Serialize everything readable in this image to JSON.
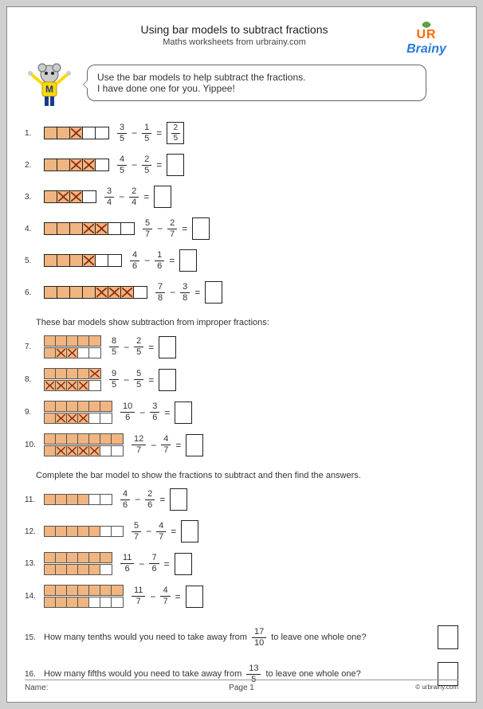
{
  "header": {
    "title": "Using bar models to subtract fractions",
    "subtitle": "Maths worksheets from urbrainy.com",
    "logo_top": "UR",
    "logo_bottom": "Brainy"
  },
  "bubble": {
    "line1": "Use the bar models to help subtract the fractions.",
    "line2": "I have done one for you. Yippee!"
  },
  "colors": {
    "fill": "#f0b580",
    "cross": "#8b2a0f",
    "border": "#222222"
  },
  "section2_text": "These bar models show subtraction from improper fractions:",
  "section3_text": "Complete the bar model to show the fractions to subtract and then find the answers.",
  "problems": [
    {
      "n": "1.",
      "bars": [
        [
          {
            "f": 1
          },
          {
            "f": 1
          },
          {
            "f": 1,
            "x": 1
          },
          {},
          {}
        ]
      ],
      "a": "3",
      "ad": "5",
      "b": "1",
      "bd": "5",
      "ans_n": "2",
      "ans_d": "5"
    },
    {
      "n": "2.",
      "bars": [
        [
          {
            "f": 1
          },
          {
            "f": 1
          },
          {
            "f": 1,
            "x": 1
          },
          {
            "f": 1,
            "x": 1
          },
          {}
        ]
      ],
      "a": "4",
      "ad": "5",
      "b": "2",
      "bd": "5"
    },
    {
      "n": "3.",
      "bars": [
        [
          {
            "f": 1
          },
          {
            "f": 1,
            "x": 1
          },
          {
            "f": 1,
            "x": 1
          },
          {}
        ]
      ],
      "a": "3",
      "ad": "4",
      "b": "2",
      "bd": "4"
    },
    {
      "n": "4.",
      "bars": [
        [
          {
            "f": 1
          },
          {
            "f": 1
          },
          {
            "f": 1
          },
          {
            "f": 1,
            "x": 1
          },
          {
            "f": 1,
            "x": 1
          },
          {},
          {}
        ]
      ],
      "a": "5",
      "ad": "7",
      "b": "2",
      "bd": "7"
    },
    {
      "n": "5.",
      "bars": [
        [
          {
            "f": 1
          },
          {
            "f": 1
          },
          {
            "f": 1
          },
          {
            "f": 1,
            "x": 1
          },
          {},
          {}
        ]
      ],
      "a": "4",
      "ad": "6",
      "b": "1",
      "bd": "6"
    },
    {
      "n": "6.",
      "bars": [
        [
          {
            "f": 1
          },
          {
            "f": 1
          },
          {
            "f": 1
          },
          {
            "f": 1
          },
          {
            "f": 1,
            "x": 1
          },
          {
            "f": 1,
            "x": 1
          },
          {
            "f": 1,
            "x": 1
          },
          {}
        ]
      ],
      "a": "7",
      "ad": "8",
      "b": "3",
      "bd": "8"
    }
  ],
  "improper": [
    {
      "n": "7.",
      "bars": [
        [
          {
            "f": 1
          },
          {
            "f": 1
          },
          {
            "f": 1
          },
          {
            "f": 1
          },
          {
            "f": 1
          }
        ],
        [
          {
            "f": 1
          },
          {
            "f": 1,
            "x": 1
          },
          {
            "f": 1,
            "x": 1
          },
          {},
          {}
        ]
      ],
      "a": "8",
      "ad": "5",
      "b": "2",
      "bd": "5"
    },
    {
      "n": "8.",
      "bars": [
        [
          {
            "f": 1
          },
          {
            "f": 1
          },
          {
            "f": 1
          },
          {
            "f": 1
          },
          {
            "f": 1,
            "x": 1
          }
        ],
        [
          {
            "f": 1,
            "x": 1
          },
          {
            "f": 1,
            "x": 1
          },
          {
            "f": 1,
            "x": 1
          },
          {
            "f": 1,
            "x": 1
          },
          {}
        ]
      ],
      "a": "9",
      "ad": "5",
      "b": "5",
      "bd": "5"
    },
    {
      "n": "9.",
      "bars": [
        [
          {
            "f": 1
          },
          {
            "f": 1
          },
          {
            "f": 1
          },
          {
            "f": 1
          },
          {
            "f": 1
          },
          {
            "f": 1
          }
        ],
        [
          {
            "f": 1
          },
          {
            "f": 1,
            "x": 1
          },
          {
            "f": 1,
            "x": 1
          },
          {
            "f": 1,
            "x": 1
          },
          {},
          {}
        ]
      ],
      "a": "10",
      "ad": "6",
      "b": "3",
      "bd": "6"
    },
    {
      "n": "10.",
      "bars": [
        [
          {
            "f": 1
          },
          {
            "f": 1
          },
          {
            "f": 1
          },
          {
            "f": 1
          },
          {
            "f": 1
          },
          {
            "f": 1
          },
          {
            "f": 1
          }
        ],
        [
          {
            "f": 1
          },
          {
            "f": 1,
            "x": 1
          },
          {
            "f": 1,
            "x": 1
          },
          {
            "f": 1,
            "x": 1
          },
          {
            "f": 1,
            "x": 1
          },
          {},
          {}
        ]
      ],
      "a": "12",
      "ad": "7",
      "b": "4",
      "bd": "7"
    }
  ],
  "complete": [
    {
      "n": "11.",
      "bars": [
        [
          {
            "f": 1
          },
          {
            "f": 1
          },
          {
            "f": 1
          },
          {
            "f": 1
          },
          {},
          {}
        ]
      ],
      "a": "4",
      "ad": "6",
      "b": "2",
      "bd": "6"
    },
    {
      "n": "12.",
      "bars": [
        [
          {
            "f": 1
          },
          {
            "f": 1
          },
          {
            "f": 1
          },
          {
            "f": 1
          },
          {
            "f": 1
          },
          {},
          {}
        ]
      ],
      "a": "5",
      "ad": "7",
      "b": "4",
      "bd": "7"
    },
    {
      "n": "13.",
      "bars": [
        [
          {
            "f": 1
          },
          {
            "f": 1
          },
          {
            "f": 1
          },
          {
            "f": 1
          },
          {
            "f": 1
          },
          {
            "f": 1
          }
        ],
        [
          {
            "f": 1
          },
          {
            "f": 1
          },
          {
            "f": 1
          },
          {
            "f": 1
          },
          {
            "f": 1
          },
          {}
        ]
      ],
      "a": "11",
      "ad": "6",
      "b": "7",
      "bd": "6"
    },
    {
      "n": "14.",
      "bars": [
        [
          {
            "f": 1
          },
          {
            "f": 1
          },
          {
            "f": 1
          },
          {
            "f": 1
          },
          {
            "f": 1
          },
          {
            "f": 1
          },
          {
            "f": 1
          }
        ],
        [
          {
            "f": 1
          },
          {
            "f": 1
          },
          {
            "f": 1
          },
          {
            "f": 1
          },
          {},
          {},
          {}
        ]
      ],
      "a": "11",
      "ad": "7",
      "b": "4",
      "bd": "7"
    }
  ],
  "wordq": [
    {
      "n": "15.",
      "before": "How many tenths would you need to take away from",
      "fn": "17",
      "fd": "10",
      "after": "to leave one whole one?"
    },
    {
      "n": "16.",
      "before": "How many fifths would you need to take away from",
      "fn": "13",
      "fd": "5",
      "after": "to leave one whole one?"
    }
  ],
  "footer": {
    "name": "Name:",
    "page": "Page 1",
    "copy": "© urbrainy.com"
  }
}
